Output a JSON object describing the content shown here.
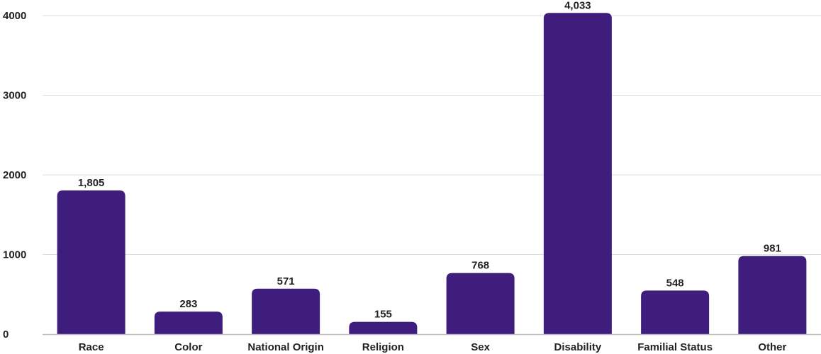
{
  "chart_data": {
    "type": "bar",
    "title": "",
    "xlabel": "",
    "ylabel": "",
    "categories": [
      "Race",
      "Color",
      "National Origin",
      "Religion",
      "Sex",
      "Disability",
      "Familial Status",
      "Other"
    ],
    "values": [
      1805,
      283,
      571,
      155,
      768,
      4033,
      548,
      981
    ],
    "value_labels": [
      "1,805",
      "283",
      "571",
      "155",
      "768",
      "4,033",
      "548",
      "981"
    ],
    "ylim": [
      0,
      4000
    ],
    "yticks": [
      0,
      1000,
      2000,
      3000,
      4000
    ],
    "ytick_labels": [
      "0",
      "1000",
      "2000",
      "3000",
      "4000"
    ],
    "grid": true,
    "legend": "none",
    "bar_color": "#3f1d7d",
    "grid_color": "#dcdcdc",
    "axis_color": "#bdbdbd"
  }
}
